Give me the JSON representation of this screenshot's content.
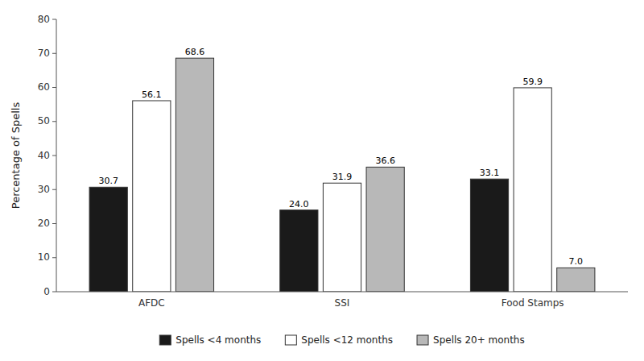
{
  "chart_data": {
    "type": "bar",
    "y_label": "Percentage of Spells",
    "categories": [
      "AFDC",
      "SSI",
      "Food Stamps"
    ],
    "series": [
      {
        "name": "Spells <4 months",
        "color": "#1a1a1a",
        "values": [
          30.7,
          24.0,
          33.1
        ],
        "value_labels": [
          "30.7",
          "24.0",
          "33.1"
        ]
      },
      {
        "name": "Spells <12 months",
        "color": "#ffffff",
        "values": [
          56.1,
          31.9,
          59.9
        ],
        "value_labels": [
          "56.1",
          "31.9",
          "59.9"
        ]
      },
      {
        "name": "Spells 20+ months",
        "color": "#b8b8b8",
        "values": [
          68.6,
          36.6,
          7.0
        ],
        "value_labels": [
          "68.6",
          "36.6",
          "7.0"
        ]
      }
    ],
    "ylim": [
      0,
      80
    ],
    "yticks": [
      0,
      10,
      20,
      30,
      40,
      50,
      60,
      70,
      80
    ],
    "grid": false,
    "legend": "bottom",
    "data_labels": true
  }
}
